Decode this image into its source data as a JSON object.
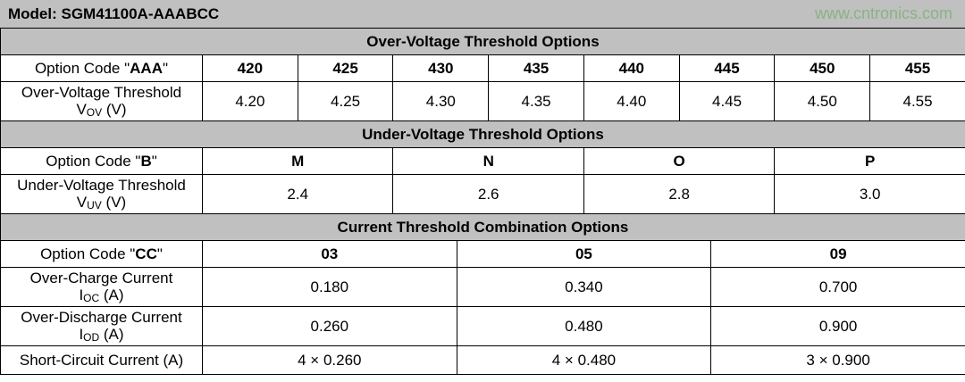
{
  "model_title": "Model: SGM41100A-AAABCC",
  "sections": [
    {
      "title": "Over-Voltage Threshold Options",
      "option_label": {
        "text": "Option Code \"",
        "code": "AAA",
        "end": "\""
      },
      "codes": [
        "420",
        "425",
        "430",
        "435",
        "440",
        "445",
        "450",
        "455"
      ],
      "rows": [
        {
          "line1": "Over-Voltage Threshold",
          "symbol": "V",
          "sub": "OV",
          "unit": " (V)",
          "values": [
            "4.20",
            "4.25",
            "4.30",
            "4.35",
            "4.40",
            "4.45",
            "4.50",
            "4.55"
          ]
        }
      ]
    },
    {
      "title": "Under-Voltage Threshold Options",
      "option_label": {
        "text": "Option  Code  \"",
        "code": "B",
        "end": "\""
      },
      "codes": [
        "M",
        "N",
        "O",
        "P"
      ],
      "rows": [
        {
          "line1": "Under-Voltage Threshold",
          "symbol": "V",
          "sub": "UV",
          "unit": " (V)",
          "values": [
            "2.4",
            "2.6",
            "2.8",
            "3.0"
          ]
        }
      ]
    },
    {
      "title": "Current Threshold Combination Options",
      "option_label": {
        "text": "Option  Code  \"",
        "code": "CC",
        "end": "\""
      },
      "codes": [
        "03",
        "05",
        "09"
      ],
      "rows": [
        {
          "line1": "Over-Charge Current",
          "symbol": "I",
          "sub": "OC",
          "unit": " (A)",
          "values": [
            "0.180",
            "0.340",
            "0.700"
          ]
        },
        {
          "line1": "Over-Discharge Current",
          "symbol": "I",
          "sub": "OD",
          "unit": " (A)",
          "values": [
            "0.260",
            "0.480",
            "0.900"
          ]
        },
        {
          "line1": "Short-Circuit Current (A)",
          "values": [
            "4 × 0.260",
            "4 × 0.480",
            "3 × 0.900"
          ]
        }
      ]
    }
  ],
  "watermark": "www.cntronics.com"
}
